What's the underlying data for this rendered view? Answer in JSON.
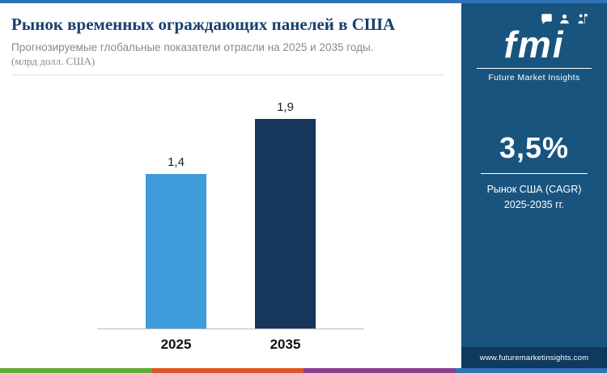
{
  "header": {
    "title": "Рынок временных ограждающих панелей в США",
    "subtitle": "Прогнозируемые глобальные показатели отрасли на 2025 и 2035 годы.",
    "unit": "(млрд долл. США)"
  },
  "chart_data": {
    "type": "bar",
    "title": "Рынок временных ограждающих панелей в США",
    "subtitle": "Прогнозируемые глобальные показатели отрасли на 2025 и 2035 годы.",
    "unit": "млрд долл. США",
    "categories": [
      "2025",
      "2035"
    ],
    "values": [
      1.4,
      1.9
    ],
    "value_labels": [
      "1,4",
      "1,9"
    ],
    "ylim": [
      0,
      2.2
    ],
    "grid": false,
    "legend": false,
    "bar_colors": [
      "#3E9CDB",
      "#16365C"
    ]
  },
  "sidebar": {
    "logo": {
      "text": "fmi",
      "brand": "Future Market Insights",
      "icons": [
        "chat-bubble-icon",
        "person-icon",
        "presenter-icon"
      ]
    },
    "stat": {
      "value": "3,5%",
      "label_line1": "Рынок США (CAGR)",
      "label_line2": "2025-2035 гг."
    },
    "website": "www.futuremarketinsights.com"
  },
  "colors": {
    "accent_top_border": "#2E74B5",
    "title_text": "#17406F",
    "subtitle_text": "#8A8A8A",
    "sidebar_bg": "#18547E",
    "sidebar_footer_bg": "#0D3A5E",
    "bar_2025": "#3E9CDB",
    "bar_2035": "#16365C",
    "stripe": [
      "#63AC33",
      "#E0532B",
      "#8C3E8C",
      "#2E74B5"
    ]
  }
}
